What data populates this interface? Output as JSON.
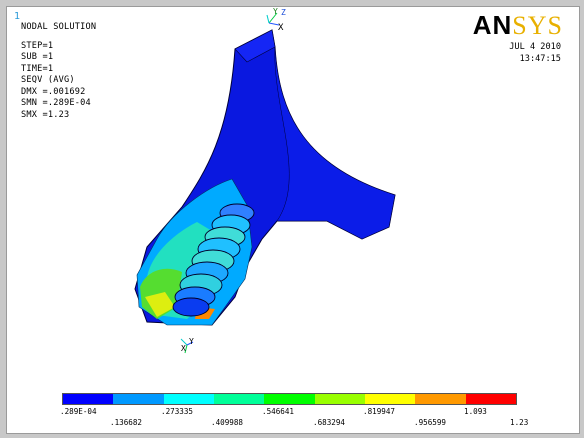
{
  "window": {
    "number": "1"
  },
  "info": {
    "title": "NODAL SOLUTION",
    "lines": [
      "STEP=1",
      "SUB =1",
      "TIME=1",
      "SEQV     (AVG)",
      "DMX =.001692",
      "SMN =.289E-04",
      "SMX =1.23"
    ]
  },
  "logo": {
    "main": "AN",
    "accent": "SYS"
  },
  "date": {
    "day": "JUL  4 2010",
    "time": "13:47:15"
  },
  "triad": {
    "top_x": "X",
    "top_y": "Y",
    "top_z": "Z",
    "bottom_x": "X",
    "bottom_y": "Y"
  },
  "legend": {
    "colors": [
      "#0000ff",
      "#0099ff",
      "#00ffff",
      "#00ff99",
      "#00ff00",
      "#99ff00",
      "#ffff00",
      "#ff9900",
      "#ff0000"
    ],
    "labels_top": [
      ".289E-04",
      ".273335",
      ".546641",
      ".819947",
      "1.093"
    ],
    "labels_bottom": [
      ".136682",
      ".409988",
      ".683294",
      ".956599",
      "1.23"
    ]
  }
}
